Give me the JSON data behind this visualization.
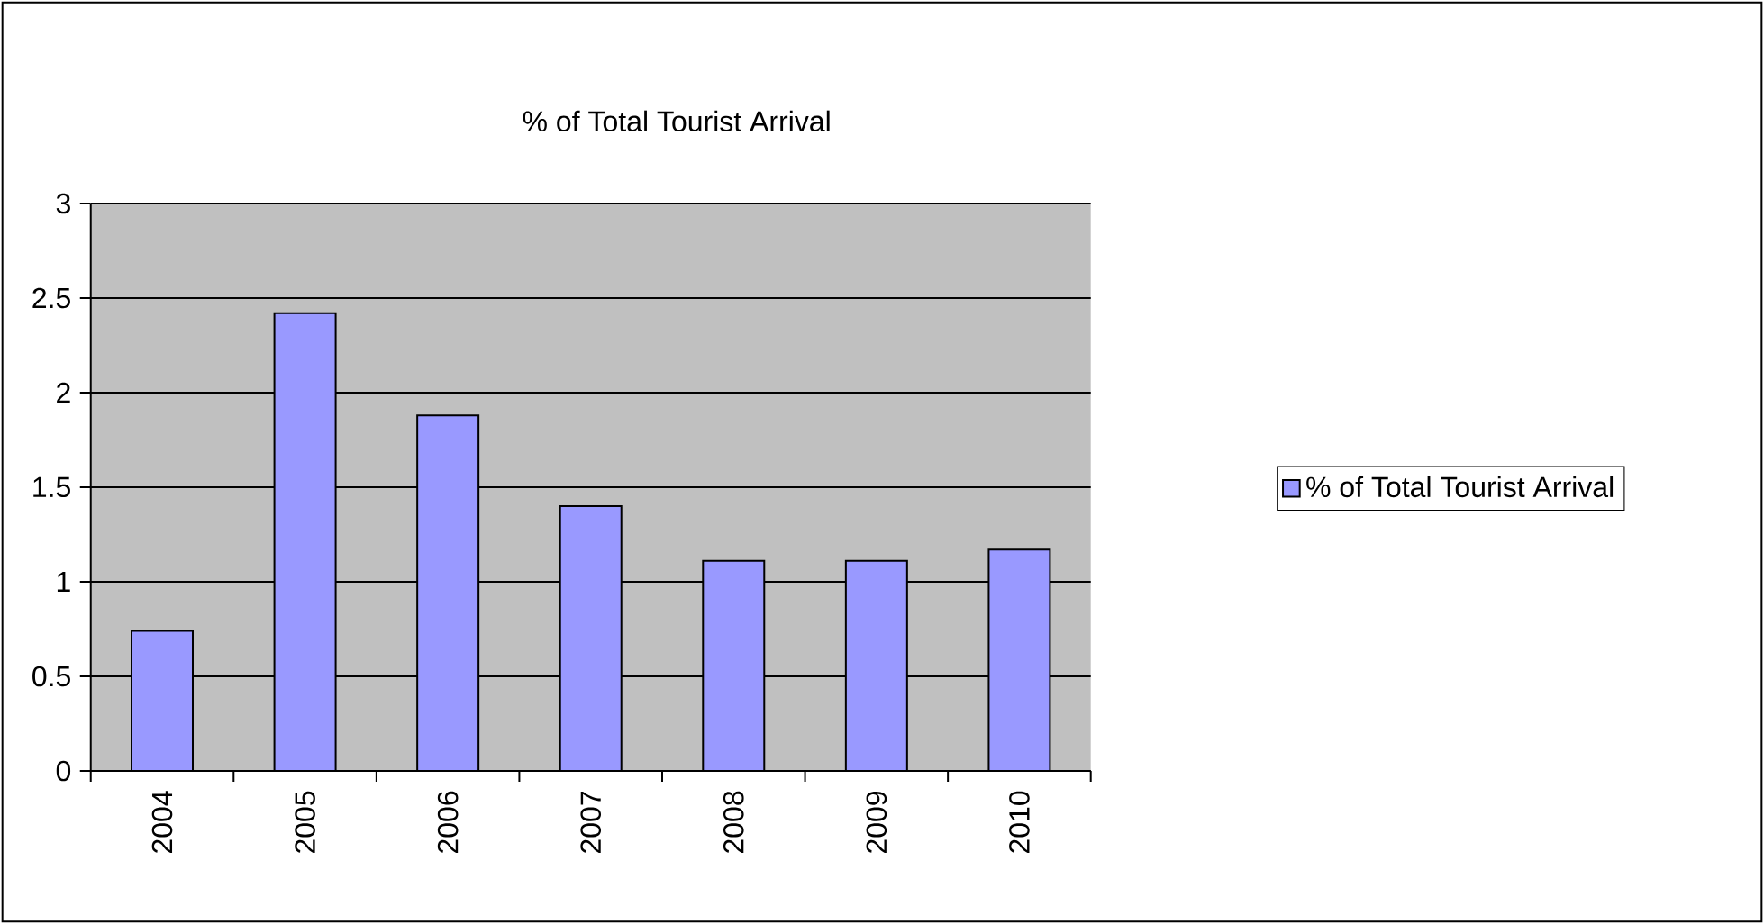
{
  "chart_data": {
    "type": "bar",
    "title": "% of Total Tourist Arrival",
    "categories": [
      "2004",
      "2005",
      "2006",
      "2007",
      "2008",
      "2009",
      "2010"
    ],
    "series": [
      {
        "name": "% of Total Tourist Arrival",
        "color": "#9999ff",
        "values": [
          0.74,
          2.42,
          1.88,
          1.4,
          1.11,
          1.11,
          1.17
        ]
      }
    ],
    "ylim": [
      0,
      3
    ],
    "yticks": [
      0,
      0.5,
      1,
      1.5,
      2,
      2.5,
      3
    ],
    "grid": "y",
    "legend": "right"
  }
}
